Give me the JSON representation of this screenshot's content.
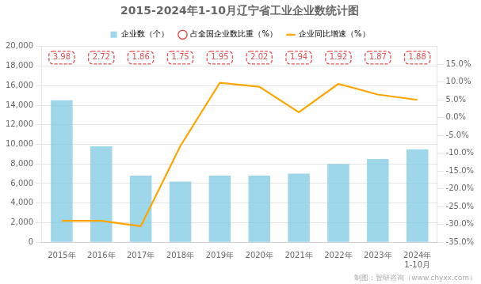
{
  "chart_data": {
    "type": "bar",
    "title": "2015-2024年1-10月辽宁省工业企业数统计图",
    "categories": [
      "2015年",
      "2016年",
      "2017年",
      "2018年",
      "2019年",
      "2020年",
      "2021年",
      "2022年",
      "2023年",
      "2024年\n1-10月"
    ],
    "series": [
      {
        "name": "企业数（个）",
        "type": "bar",
        "color": "#7EC8E3",
        "values": [
          14500,
          9800,
          6800,
          6200,
          6800,
          6800,
          7000,
          8000,
          8500,
          9500
        ]
      },
      {
        "name": "占全国企业数比重（%）",
        "type": "annotation",
        "color": "#E05050",
        "marker": "circle",
        "line_style": "dashed",
        "data_labels": true,
        "values": [
          3.98,
          2.72,
          1.86,
          1.75,
          1.95,
          2.02,
          1.94,
          1.92,
          1.87,
          1.88
        ]
      },
      {
        "name": "企业同比增速（%）",
        "type": "line",
        "axis": "y2",
        "color": "#FFA500",
        "values": [
          -29.0,
          -29.0,
          -30.5,
          -8.0,
          9.8,
          8.7,
          1.5,
          9.5,
          6.5,
          5.0
        ]
      }
    ],
    "ylim": [
      0,
      20000
    ],
    "yticks": [
      0,
      {
        "value": 2000,
        "label": "2,000"
      },
      {
        "value": 4000,
        "label": "4,000"
      },
      {
        "value": 6000,
        "label": "6,000"
      },
      {
        "value": 8000,
        "label": "8,000"
      },
      {
        "value": 10000,
        "label": "10,000"
      },
      {
        "value": 12000,
        "label": "12,000"
      },
      {
        "value": 14000,
        "label": "14,000"
      },
      {
        "value": 16000,
        "label": "16,000"
      },
      {
        "value": 18000,
        "label": "18,000"
      },
      {
        "value": 20000,
        "label": "20,000"
      }
    ],
    "y2lim": [
      -35,
      20
    ],
    "y2ticks": [
      {
        "value": -35,
        "label": "-35.0%"
      },
      {
        "value": -30,
        "label": "-30.0%"
      },
      {
        "value": -25,
        "label": "-25.0%"
      },
      {
        "value": -20,
        "label": "-20.0%"
      },
      {
        "value": -15,
        "label": "-15.0%"
      },
      {
        "value": -10,
        "label": "-10.0%"
      },
      {
        "value": -5,
        "label": "-5.0%"
      },
      {
        "value": 0,
        "label": "0.0%"
      },
      {
        "value": 5,
        "label": "5.0%"
      },
      {
        "value": 10,
        "label": "10.0%"
      },
      {
        "value": 15,
        "label": "15.0%"
      }
    ],
    "grid": true,
    "legend": "top",
    "annotations": [
      "制图：智研咨询（www.chyxx.com）"
    ]
  }
}
